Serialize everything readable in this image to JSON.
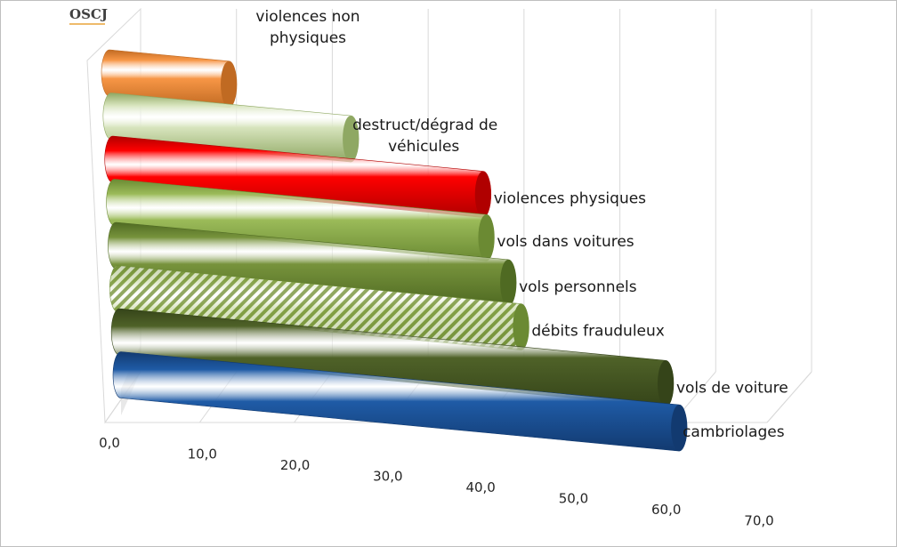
{
  "logo": {
    "text": "OSCJ",
    "accent_color": "#e8a33a"
  },
  "chart_data": {
    "type": "bar",
    "orientation": "horizontal",
    "style": "3d-cylinder",
    "xlim": [
      0,
      70
    ],
    "x_ticks": [
      "0,0",
      "10,0",
      "20,0",
      "30,0",
      "40,0",
      "50,0",
      "60,0",
      "70,0"
    ],
    "grid": true,
    "legend": "none",
    "bars": [
      {
        "label": "violences non physiques",
        "lines": [
          "violences non",
          "physiques"
        ],
        "value": 13,
        "color": "#f79646",
        "dark": "#c06a22",
        "pattern": "solid"
      },
      {
        "label": "destruct/dégrad de véhicules",
        "lines": [
          "destruct/dégrad de",
          "véhicules"
        ],
        "value": 26,
        "color": "#d7e4bd",
        "dark": "#8fa863",
        "pattern": "solid"
      },
      {
        "label": "violences physiques",
        "lines": [
          "violences physiques"
        ],
        "value": 40,
        "color": "#ff0000",
        "dark": "#b00000",
        "pattern": "solid"
      },
      {
        "label": "vols dans voitures",
        "lines": [
          "vols dans voitures"
        ],
        "value": 40,
        "color": "#9bbb59",
        "dark": "#6b8a33",
        "pattern": "solid"
      },
      {
        "label": "vols personnels",
        "lines": [
          "vols personnels"
        ],
        "value": 42,
        "color": "#77933c",
        "dark": "#4f6a22",
        "pattern": "solid"
      },
      {
        "label": "débits frauduleux",
        "lines": [
          "débits frauduleux"
        ],
        "value": 43,
        "color": "#9bbb59",
        "dark": "#6b8a33",
        "pattern": "hatched"
      },
      {
        "label": "vols de voiture",
        "lines": [
          "vols de voiture"
        ],
        "value": 58,
        "color": "#4f6228",
        "dark": "#354419",
        "pattern": "solid"
      },
      {
        "label": "cambriolages",
        "lines": [
          "cambriolages"
        ],
        "value": 59,
        "color": "#1f5ba6",
        "dark": "#123a70",
        "pattern": "solid"
      }
    ]
  }
}
